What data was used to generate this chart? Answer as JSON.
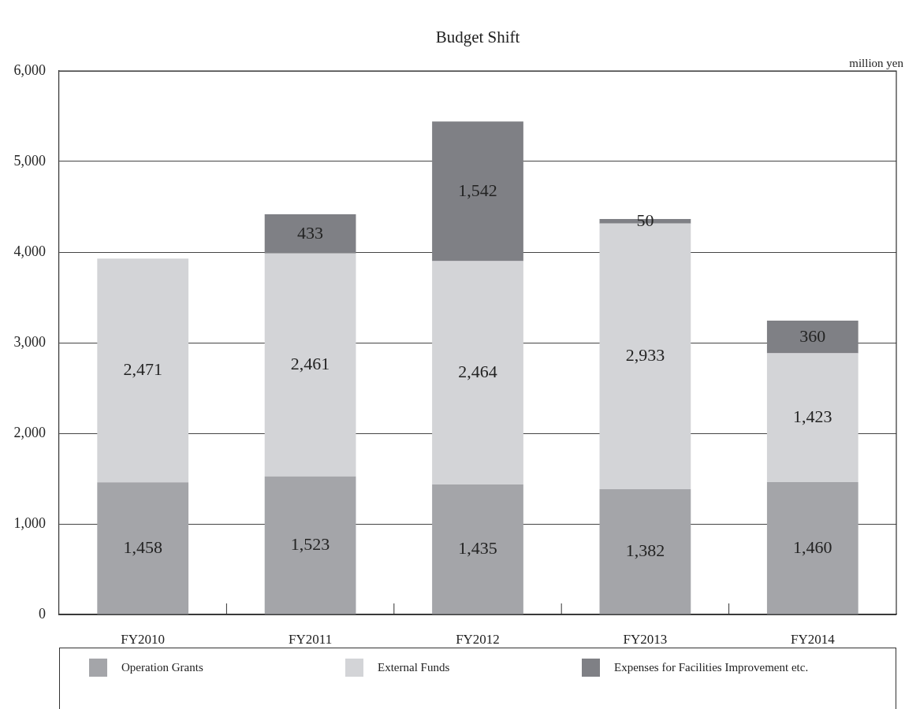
{
  "chart_data": {
    "type": "bar",
    "title": "Budget Shift",
    "ylabel": "million yen",
    "categories": [
      "FY2010",
      "FY2011",
      "FY2012",
      "FY2013",
      "FY2014"
    ],
    "series": [
      {
        "name": "Operation Grants",
        "color": "#a4a5a9",
        "values": [
          1458,
          1523,
          1435,
          1382,
          1460
        ],
        "value_labels": [
          "1,458",
          "1,523",
          "1,435",
          "1,382",
          "1,460"
        ]
      },
      {
        "name": "External Funds",
        "color": "#d3d4d7",
        "values": [
          2471,
          2461,
          2464,
          2933,
          1423
        ],
        "value_labels": [
          "2,471",
          "2,461",
          "2,464",
          "2,933",
          "1,423"
        ]
      },
      {
        "name": "Expenses for Facilities Improvement etc.",
        "color": "#7f8085",
        "values": [
          null,
          433,
          1542,
          50,
          360
        ],
        "value_labels": [
          null,
          "433",
          "1,542",
          "50",
          "360"
        ]
      }
    ],
    "stacked": true,
    "ylim": [
      0,
      6000
    ],
    "yticks": [
      0,
      {
        "value": 1000,
        "label": "1,000"
      },
      {
        "value": 2000,
        "label": "2,000"
      },
      {
        "value": 3000,
        "label": "3,000"
      },
      {
        "value": 4000,
        "label": "4,000"
      },
      {
        "value": 5000,
        "label": "5,000"
      },
      {
        "value": 6000,
        "label": "6,000"
      }
    ],
    "grid": "y",
    "legend": "bottom"
  }
}
